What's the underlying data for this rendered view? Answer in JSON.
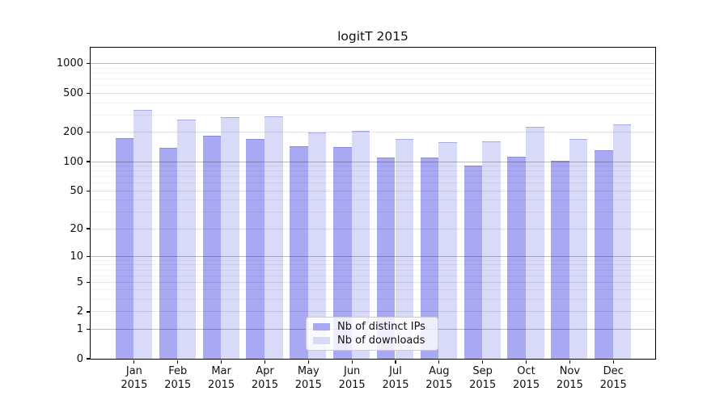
{
  "chart_data": {
    "type": "bar",
    "title": "logitT 2015",
    "categories": [
      {
        "month": "Jan",
        "year": "2015"
      },
      {
        "month": "Feb",
        "year": "2015"
      },
      {
        "month": "Mar",
        "year": "2015"
      },
      {
        "month": "Apr",
        "year": "2015"
      },
      {
        "month": "May",
        "year": "2015"
      },
      {
        "month": "Jun",
        "year": "2015"
      },
      {
        "month": "Jul",
        "year": "2015"
      },
      {
        "month": "Aug",
        "year": "2015"
      },
      {
        "month": "Sep",
        "year": "2015"
      },
      {
        "month": "Oct",
        "year": "2015"
      },
      {
        "month": "Nov",
        "year": "2015"
      },
      {
        "month": "Dec",
        "year": "2015"
      }
    ],
    "series": [
      {
        "name": "Nb of distinct IPs",
        "color": "#a9a9f3",
        "values": [
          170,
          135,
          181,
          168,
          140,
          138,
          108,
          109,
          89,
          111,
          100,
          128
        ]
      },
      {
        "name": "Nb of downloads",
        "color": "#d9d9f8",
        "values": [
          330,
          263,
          278,
          284,
          196,
          204,
          167,
          156,
          158,
          222,
          167,
          236
        ]
      }
    ],
    "yscale": "log1p",
    "yticks": [
      0,
      1,
      2,
      5,
      10,
      20,
      50,
      100,
      200,
      500,
      1000
    ],
    "ylim": [
      0,
      1450
    ],
    "grid": true,
    "legend_position": "lower center",
    "axis_color": "#000000",
    "background_color": "#ffffff"
  }
}
